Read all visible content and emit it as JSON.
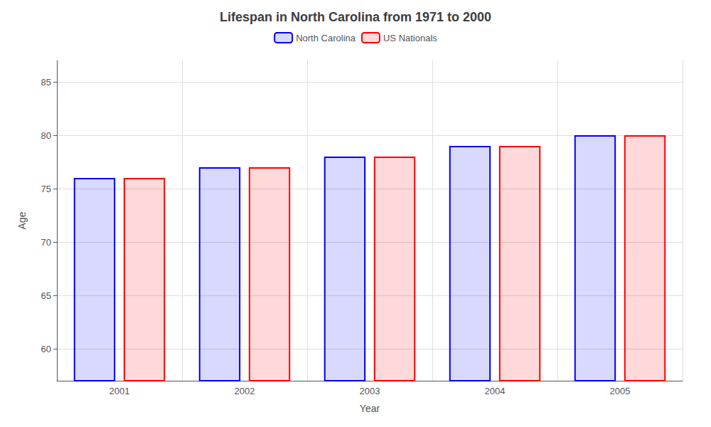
{
  "chart_data": {
    "type": "bar",
    "title": "Lifespan in North Carolina from 1971 to 2000",
    "xlabel": "Year",
    "ylabel": "Age",
    "categories": [
      "2001",
      "2002",
      "2003",
      "2004",
      "2005"
    ],
    "series": [
      {
        "name": "North Carolina",
        "color": "#0000ff",
        "values": [
          76,
          77,
          78,
          79,
          80
        ]
      },
      {
        "name": "US Nationals",
        "color": "#ff0000",
        "values": [
          76,
          77,
          78,
          79,
          80
        ]
      }
    ],
    "ylim": [
      57,
      87
    ],
    "yticks": [
      60,
      65,
      70,
      75,
      80,
      85
    ],
    "grid": true,
    "legend": "upper center"
  }
}
